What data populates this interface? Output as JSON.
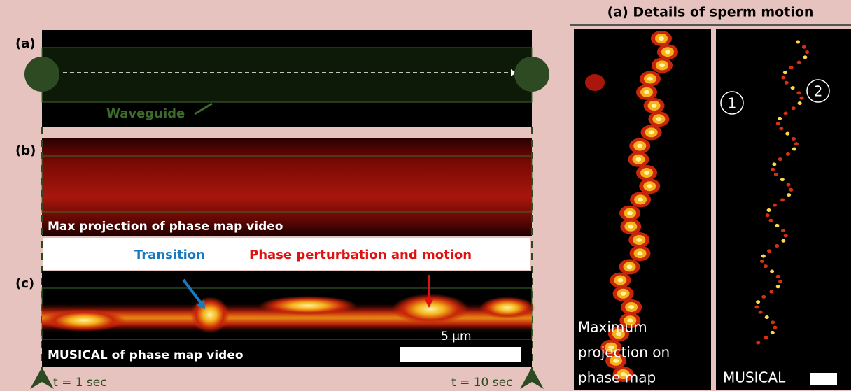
{
  "left": {
    "panel_a": {
      "label": "(a)",
      "waveguide": "Waveguide"
    },
    "panel_b": {
      "label": "(b)",
      "caption": "Max projection of phase map video"
    },
    "annotations": {
      "transition": "Transition",
      "perturbation": "Phase perturbation and motion"
    },
    "panel_c": {
      "label": "(c)",
      "scale": "5 µm",
      "caption": "MUSICAL of phase map video"
    },
    "time": {
      "start": "t = 1 sec",
      "end": "t = 10 sec"
    }
  },
  "right": {
    "title": "(a) Details of sperm motion",
    "left_panel": {
      "caption_lines": [
        "Maximum",
        "projection on",
        "phase map"
      ]
    },
    "right_panel": {
      "caption": "MUSICAL",
      "markers": [
        "1",
        "2"
      ]
    }
  }
}
